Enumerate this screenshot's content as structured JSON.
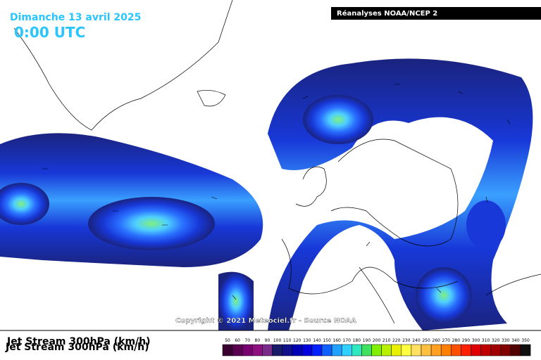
{
  "header": {
    "date": "Dimanche 13 avril 2025",
    "time": "0:00 UTC",
    "source": "Réanalyses NOAA/NCEP 2"
  },
  "copyright": "Copyright © 2021 Meteociel.fr - Source NOAA",
  "legend": {
    "title": "Jet Stream 300hPa (km/h)",
    "labels": [
      50,
      60,
      70,
      80,
      90,
      100,
      110,
      120,
      130,
      140,
      150,
      160,
      170,
      180,
      190,
      200,
      210,
      220,
      230,
      240,
      250,
      260,
      270,
      280,
      290,
      300,
      310,
      320,
      330,
      340,
      350
    ],
    "colors": [
      "#3a0030",
      "#5a0050",
      "#780070",
      "#8c1080",
      "#7a2a8a",
      "#1a1a6a",
      "#10108c",
      "#0000b4",
      "#0000dc",
      "#0020ff",
      "#1060ff",
      "#20a0ff",
      "#30d0ff",
      "#30e8c0",
      "#40e060",
      "#80f000",
      "#b8f000",
      "#e8f000",
      "#ffff40",
      "#ffe060",
      "#ffc040",
      "#ffa020",
      "#ff8000",
      "#ff5000",
      "#ff2000",
      "#e00000",
      "#c00000",
      "#a00000",
      "#800000",
      "#500000",
      "#101010"
    ]
  }
}
